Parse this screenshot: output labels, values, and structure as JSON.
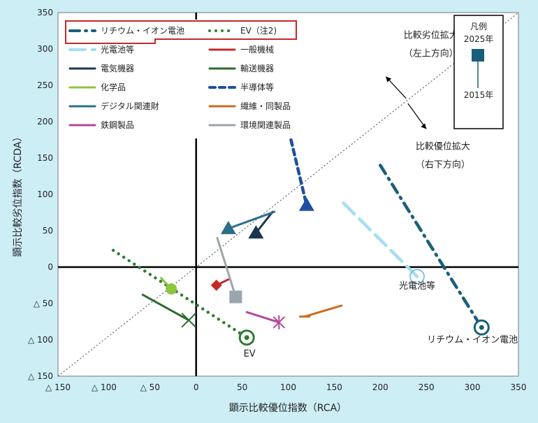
{
  "chart_data": {
    "type": "scatter",
    "xlabel": "顕示比較優位指数（RCA）",
    "ylabel": "顕示比較劣位指数（RCDA）",
    "xlim": [
      -150,
      350
    ],
    "ylim": [
      -150,
      350
    ],
    "x_ticks": [
      {
        "v": -150,
        "label": "△ 150"
      },
      {
        "v": -100,
        "label": "△ 100"
      },
      {
        "v": -50,
        "label": "△ 50"
      },
      {
        "v": 0,
        "label": "0"
      },
      {
        "v": 50,
        "label": "50"
      },
      {
        "v": 100,
        "label": "100"
      },
      {
        "v": 150,
        "label": "150"
      },
      {
        "v": 200,
        "label": "200"
      },
      {
        "v": 250,
        "label": "250"
      },
      {
        "v": 300,
        "label": "300"
      },
      {
        "v": 350,
        "label": "350"
      }
    ],
    "y_ticks": [
      {
        "v": 350,
        "label": "350"
      },
      {
        "v": 300,
        "label": "300"
      },
      {
        "v": 250,
        "label": "250"
      },
      {
        "v": 200,
        "label": "200"
      },
      {
        "v": 150,
        "label": "150"
      },
      {
        "v": 100,
        "label": "100"
      },
      {
        "v": 50,
        "label": "50"
      },
      {
        "v": 0,
        "label": "0"
      },
      {
        "v": -50,
        "label": "△ 50"
      },
      {
        "v": -100,
        "label": "△ 100"
      },
      {
        "v": -150,
        "label": "△ 150"
      }
    ],
    "diagonal": true,
    "grid": false,
    "series": [
      {
        "name": "リチウム・イオン電池",
        "color": "#1a5f7a",
        "dash": "dashdot",
        "marker": "circle-ring",
        "x": [
          200,
          310
        ],
        "y": [
          140,
          -83
        ],
        "highlight": true
      },
      {
        "name": "EV（注2)",
        "color": "#2e7d32",
        "dash": "dotted",
        "marker": "circle-ring",
        "x": [
          -90,
          55
        ],
        "y": [
          23,
          -97
        ],
        "highlight": true
      },
      {
        "name": "光電池等",
        "color": "#a6def0",
        "dash": "longdash",
        "marker": "circle-ring-open",
        "x": [
          160,
          240
        ],
        "y": [
          88,
          -13
        ]
      },
      {
        "name": "一般機械",
        "color": "#c62828",
        "marker": "diamond",
        "x": [
          35,
          22
        ],
        "y": [
          -17,
          -25
        ]
      },
      {
        "name": "電気機器",
        "color": "#1b3552",
        "marker": "triangle",
        "x": [
          83,
          65
        ],
        "y": [
          76,
          47
        ]
      },
      {
        "name": "輸送機器",
        "color": "#2d6a2d",
        "marker": "cross",
        "x": [
          -58,
          -8
        ],
        "y": [
          -38,
          -73
        ]
      },
      {
        "name": "化学品",
        "color": "#8dc63f",
        "marker": "circle",
        "x": [
          -38,
          -27
        ],
        "y": [
          -15,
          -30
        ]
      },
      {
        "name": "半導体等",
        "color": "#1f4fa0",
        "marker": "triangle",
        "x": [
          103,
          120
        ],
        "y": [
          175,
          85
        ],
        "dash": "dashed"
      },
      {
        "name": "デジタル関連財",
        "color": "#2a6f8a",
        "marker": "triangle",
        "x": [
          85,
          35
        ],
        "y": [
          76,
          53
        ]
      },
      {
        "name": "繊維・同製品",
        "color": "#d2691e",
        "marker": "dash",
        "x": [
          158,
          118
        ],
        "y": [
          -53,
          -68
        ]
      },
      {
        "name": "鉄鋼製品",
        "color": "#b5479b",
        "marker": "star",
        "x": [
          55,
          90
        ],
        "y": [
          -62,
          -76
        ]
      },
      {
        "name": "環境関連製品",
        "color": "#9aa5ad",
        "marker": "square",
        "x": [
          23,
          43
        ],
        "y": [
          40,
          -41
        ]
      }
    ],
    "annotations": [
      {
        "text": "比較劣位拡大",
        "x": 255,
        "y": 315
      },
      {
        "text": "（左上方向）",
        "x": 255,
        "y": 290
      },
      {
        "text": "比較優位拡大",
        "x": 268,
        "y": 162
      },
      {
        "text": "（右下方向）",
        "x": 268,
        "y": 137
      },
      {
        "text": "光電池等",
        "x": 240,
        "y": -30
      },
      {
        "text": "リチウム・イオン電池",
        "x": 300,
        "y": -104
      },
      {
        "text": "EV",
        "x": 58,
        "y": -123
      }
    ],
    "inset_legend": {
      "title": "凡例",
      "top_label": "2025年",
      "bottom_label": "2015年",
      "color": "#1a5f7a"
    }
  }
}
